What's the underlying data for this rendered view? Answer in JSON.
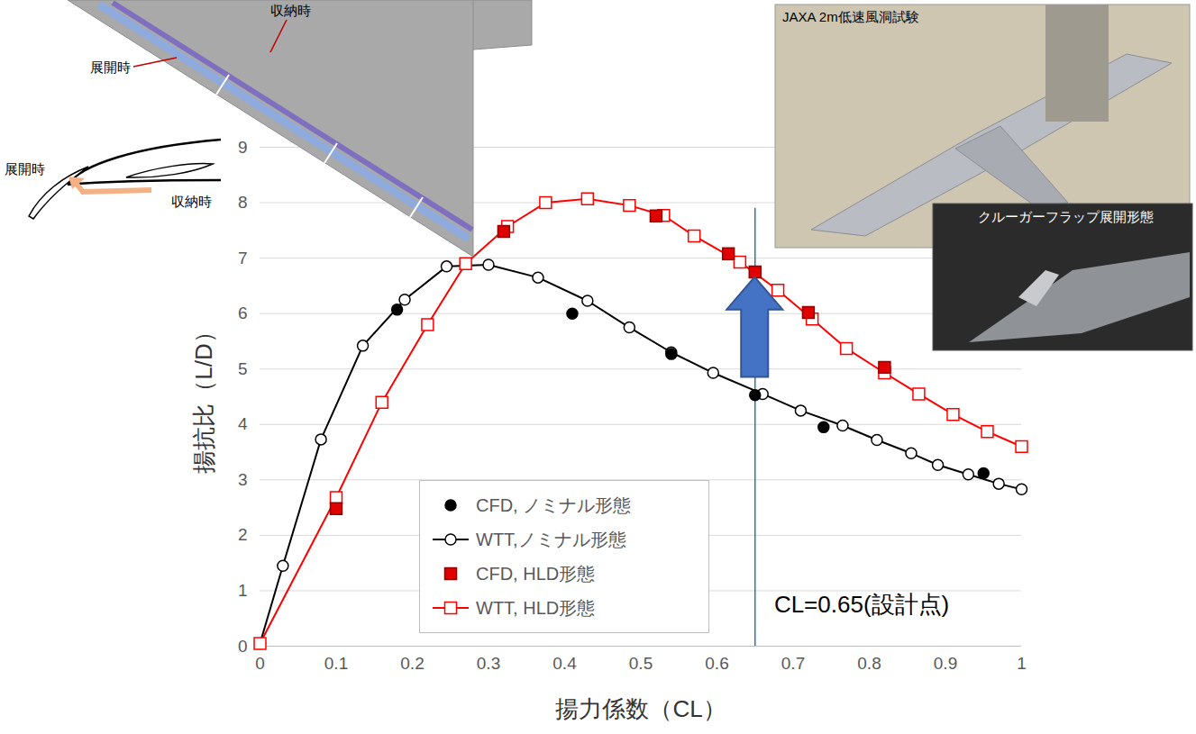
{
  "chart_data": {
    "type": "line",
    "x_label": "揚力係数（CL）",
    "y_label": "揚抗比（L/D）",
    "xlim": [
      0,
      1
    ],
    "xticks": [
      0,
      0.1,
      0.2,
      0.3,
      0.4,
      0.5,
      0.6,
      0.7,
      0.8,
      0.9,
      1
    ],
    "ylim": [
      0,
      9
    ],
    "yticks": [
      0,
      1,
      2,
      3,
      4,
      5,
      6,
      7,
      8,
      9
    ],
    "grid": true,
    "legend": "bottom",
    "series": [
      {
        "name": "CFD, ノミナル形態",
        "color": "#000000",
        "marker": "filled_circle",
        "line_style": "none",
        "x": [
          0.18,
          0.41,
          0.54,
          0.65,
          0.74,
          0.95
        ],
        "values": [
          6.07,
          6.0,
          5.27,
          4.53,
          3.95,
          3.12
        ]
      },
      {
        "name": "WTT,ノミナル形態",
        "color": "#000000",
        "marker": "open_circle",
        "line_style": "solid",
        "x": [
          0,
          0.03,
          0.08,
          0.135,
          0.19,
          0.245,
          0.3,
          0.365,
          0.43,
          0.485,
          0.54,
          0.595,
          0.66,
          0.71,
          0.765,
          0.81,
          0.855,
          0.89,
          0.93,
          0.97,
          1
        ],
        "values": [
          0.05,
          1.45,
          3.73,
          5.42,
          6.25,
          6.85,
          6.88,
          6.65,
          6.23,
          5.75,
          5.3,
          4.93,
          4.55,
          4.25,
          3.98,
          3.72,
          3.48,
          3.27,
          3.1,
          2.93,
          2.83
        ]
      },
      {
        "name": "CFD, HLD形態",
        "color": "#e00000",
        "marker": "filled_square",
        "line_style": "none",
        "x": [
          0.1,
          0.32,
          0.52,
          0.615,
          0.65,
          0.72,
          0.82
        ],
        "values": [
          2.48,
          7.48,
          7.76,
          7.08,
          6.75,
          6.02,
          5.03
        ]
      },
      {
        "name": "WTT, HLD形態",
        "color": "#ff0000",
        "marker": "open_square",
        "line_style": "solid",
        "x": [
          0,
          0.1,
          0.16,
          0.22,
          0.27,
          0.325,
          0.375,
          0.43,
          0.485,
          0.53,
          0.57,
          0.63,
          0.68,
          0.725,
          0.77,
          0.82,
          0.865,
          0.91,
          0.955,
          1
        ],
        "values": [
          0.05,
          2.68,
          4.4,
          5.8,
          6.9,
          7.57,
          8.0,
          8.07,
          7.95,
          7.77,
          7.4,
          6.93,
          6.42,
          5.9,
          5.37,
          4.93,
          4.55,
          4.18,
          3.87,
          3.6
        ]
      }
    ],
    "reference_line": {
      "x": 0.65,
      "y": [
        0,
        7.9
      ],
      "color": "#2e75b6",
      "label": "CL=0.65(設計点)",
      "label_x": 0.675,
      "label_y": 0.75
    },
    "arrow": {
      "x": 0.65,
      "y": [
        4.85,
        6.65
      ],
      "color": "#4472c4"
    },
    "insets": [
      {
        "type": "diagram",
        "labels": [
          "収納時",
          "展開時",
          "展開時",
          "収納時"
        ]
      },
      {
        "type": "photo",
        "labels": [
          "JAXA 2m低速風洞試験"
        ]
      },
      {
        "type": "photo",
        "labels": [
          "クルーガーフラップ展開形態"
        ]
      }
    ]
  }
}
